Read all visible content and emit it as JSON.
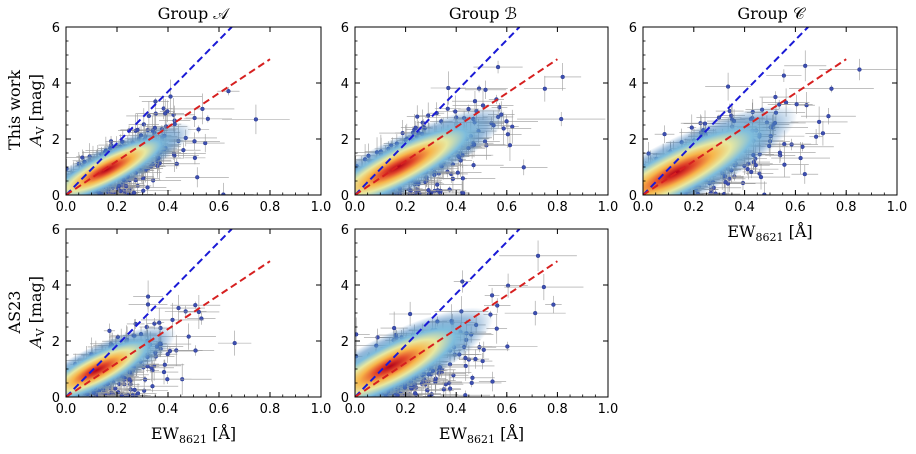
{
  "figure": {
    "columns": [
      "Group 𝒜",
      "Group ℬ",
      "Group 𝒞"
    ],
    "rows": [
      {
        "line1": "This work",
        "line2": "A",
        "line2_sub": "V",
        "line2_unit": " [mag]"
      },
      {
        "line1": "AS23",
        "line2": "A",
        "line2_sub": "V",
        "line2_unit": " [mag]"
      }
    ],
    "xlabel_main": "EW",
    "xlabel_sub": "8621",
    "xlabel_unit": " [Å]"
  },
  "colors": {
    "point_edge": "#2b3a8f",
    "point_fill": "#3d4fb0",
    "errorbar": "#9a9a9a",
    "density_low": "#b8d8ec",
    "density_mid": "#4f8fc3",
    "density_high": "#d7301f",
    "line_blue": "#1a1ad6",
    "line_red": "#d62020"
  },
  "chart_data": [
    {
      "panel": "This work — Group 𝒜",
      "type": "scatter",
      "xlim": [
        0,
        1.0
      ],
      "ylim": [
        0,
        6
      ],
      "xticks": [
        "0.0",
        "0.2",
        "0.4",
        "0.6",
        "0.8",
        "1.0"
      ],
      "yticks": [
        "0",
        "2",
        "4",
        "6"
      ],
      "xlabel": "",
      "ylabel": "A_V [mag]",
      "density_center": [
        0.16,
        0.9
      ],
      "x_spread": 0.14,
      "y_spread": 0.75,
      "relations": [
        {
          "color": "blue",
          "x": [
            0.0,
            0.65
          ],
          "y": [
            0.0,
            6.0
          ]
        },
        {
          "color": "red",
          "x": [
            0.0,
            0.8
          ],
          "y": [
            0.0,
            4.85
          ]
        }
      ]
    },
    {
      "panel": "This work — Group ℬ",
      "type": "scatter",
      "xlim": [
        0,
        1.0
      ],
      "ylim": [
        0,
        6
      ],
      "xticks": [
        "0.0",
        "0.2",
        "0.4",
        "0.6",
        "0.8",
        "1.0"
      ],
      "yticks": [
        "0",
        "2",
        "4",
        "6"
      ],
      "xlabel": "",
      "ylabel": "",
      "density_center": [
        0.17,
        1.0
      ],
      "x_spread": 0.18,
      "y_spread": 0.95,
      "relations": [
        {
          "color": "blue",
          "x": [
            0.0,
            0.65
          ],
          "y": [
            0.0,
            6.0
          ]
        },
        {
          "color": "red",
          "x": [
            0.0,
            0.8
          ],
          "y": [
            0.0,
            4.85
          ]
        }
      ]
    },
    {
      "panel": "This work — Group 𝒞",
      "type": "scatter",
      "xlim": [
        0,
        1.0
      ],
      "ylim": [
        0,
        6
      ],
      "xticks": [
        "0.0",
        "0.2",
        "0.4",
        "0.6",
        "0.8",
        "1.0"
      ],
      "yticks": [
        "0",
        "2",
        "4",
        "6"
      ],
      "xlabel": "EW_8621 [Å]",
      "ylabel": "",
      "density_center": [
        0.13,
        0.8
      ],
      "x_spread": 0.2,
      "y_spread": 1.1,
      "relations": [
        {
          "color": "blue",
          "x": [
            0.0,
            0.65
          ],
          "y": [
            0.0,
            6.0
          ]
        },
        {
          "color": "red",
          "x": [
            0.0,
            0.8
          ],
          "y": [
            0.0,
            4.85
          ]
        }
      ]
    },
    {
      "panel": "AS23 — Group 𝒜",
      "type": "scatter",
      "xlim": [
        0,
        1.0
      ],
      "ylim": [
        0,
        6
      ],
      "xticks": [
        "0.0",
        "0.2",
        "0.4",
        "0.6",
        "0.8",
        "1.0"
      ],
      "yticks": [
        "0",
        "2",
        "4",
        "6"
      ],
      "xlabel": "EW_8621 [Å]",
      "ylabel": "A_V [mag]",
      "density_center": [
        0.12,
        0.95
      ],
      "x_spread": 0.13,
      "y_spread": 0.8,
      "relations": [
        {
          "color": "blue",
          "x": [
            0.0,
            0.65
          ],
          "y": [
            0.0,
            6.0
          ]
        },
        {
          "color": "red",
          "x": [
            0.0,
            0.8
          ],
          "y": [
            0.0,
            4.85
          ]
        }
      ]
    },
    {
      "panel": "AS23 — Group ℬ",
      "type": "scatter",
      "xlim": [
        0,
        1.0
      ],
      "ylim": [
        0,
        6
      ],
      "xticks": [
        "0.0",
        "0.2",
        "0.4",
        "0.6",
        "0.8",
        "1.0"
      ],
      "yticks": [
        "0",
        "2",
        "4",
        "6"
      ],
      "xlabel": "EW_8621 [Å]",
      "ylabel": "",
      "density_center": [
        0.14,
        1.1
      ],
      "x_spread": 0.17,
      "y_spread": 1.05,
      "relations": [
        {
          "color": "blue",
          "x": [
            0.0,
            0.65
          ],
          "y": [
            0.0,
            6.0
          ]
        },
        {
          "color": "red",
          "x": [
            0.0,
            0.8
          ],
          "y": [
            0.0,
            4.85
          ]
        }
      ]
    }
  ]
}
